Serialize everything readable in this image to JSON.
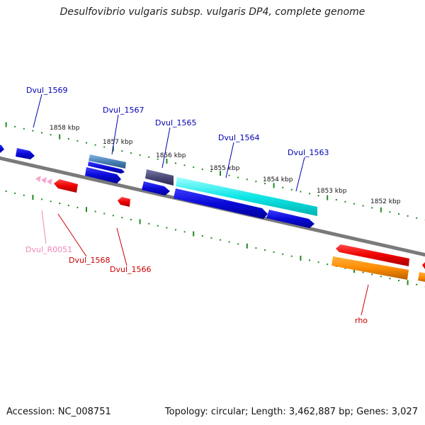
{
  "title": "Desulfovibrio vulgaris subsp. vulgaris DP4, complete genome",
  "footer": {
    "accession": "Accession: NC_008751",
    "stats": "Topology: circular; Length: 3,462,887 bp; Genes: 3,027"
  },
  "colors": {
    "backbone": "#7a7a7a",
    "ticks": "#1f8a1f",
    "label_blue": "#0000b3",
    "label_red": "#cc0000",
    "label_pink": "#ee88bb"
  },
  "scale_labels": [
    "1858 kbp",
    "1857 kbp",
    "1856 kbp",
    "1855 kbp",
    "1854 kbp",
    "1853 kbp",
    "1852 kbp"
  ],
  "genes": [
    {
      "label": "Dvul_1569",
      "color": "#0000b3"
    },
    {
      "label": "Dvul_1567",
      "color": "#0000b3"
    },
    {
      "label": "Dvul_1565",
      "color": "#0000b3"
    },
    {
      "label": "Dvul_1564",
      "color": "#0000b3"
    },
    {
      "label": "Dvul_1563",
      "color": "#0000b3"
    },
    {
      "label": "Dvul_R0051",
      "color": "#ee88bb"
    },
    {
      "label": "Dvul_1568",
      "color": "#cc0000"
    },
    {
      "label": "Dvul_1566",
      "color": "#cc0000"
    },
    {
      "label": "rho",
      "color": "#cc0000"
    }
  ]
}
